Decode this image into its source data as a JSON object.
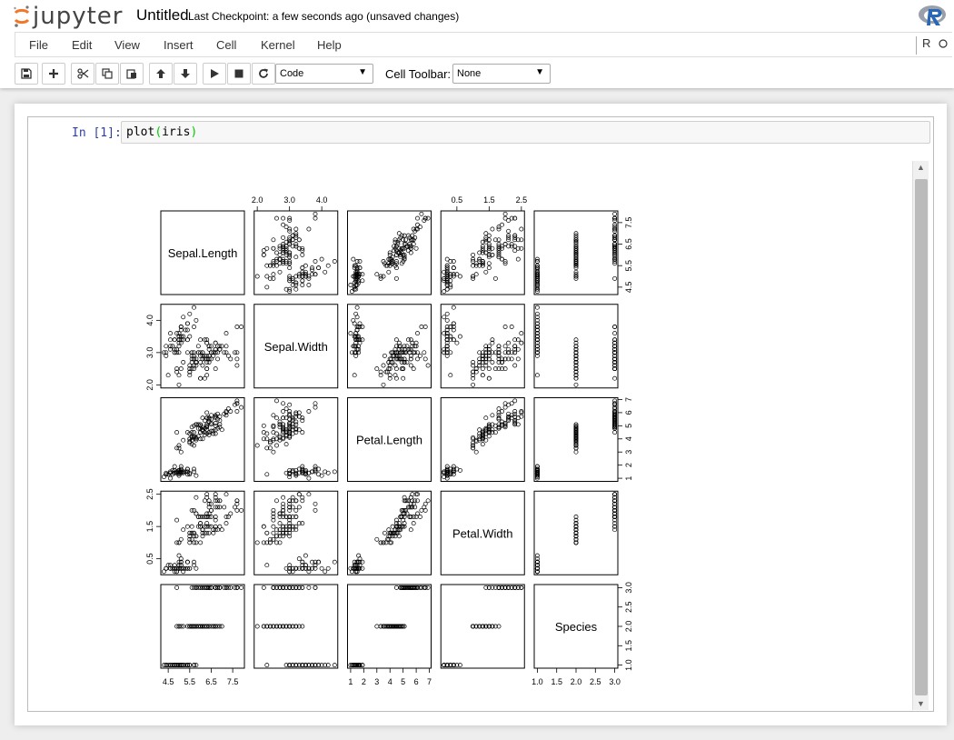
{
  "header": {
    "logo_text": "jupyter",
    "notebook_name": "Untitled",
    "checkpoint": "Last Checkpoint: a few seconds ago (unsaved changes)"
  },
  "menu": {
    "items": [
      "File",
      "Edit",
      "View",
      "Insert",
      "Cell",
      "Kernel",
      "Help"
    ],
    "kernel_indicator": "R"
  },
  "toolbar": {
    "cell_type": "Code",
    "cell_toolbar_label": "Cell Toolbar:",
    "cell_toolbar_value": "None",
    "buttons": [
      "save-icon",
      "plus-icon",
      "scissors-icon",
      "copy-icon",
      "paste-icon",
      "arrow-up-icon",
      "arrow-down-icon",
      "play-icon",
      "stop-icon",
      "restart-icon"
    ]
  },
  "cell": {
    "prompt": "In [1]:",
    "code_fn": "plot",
    "code_open": "(",
    "code_arg": "iris",
    "code_close": ")"
  },
  "chart_data": {
    "type": "scatter",
    "kind": "pairs-matrix",
    "variables": [
      "Sepal.Length",
      "Sepal.Width",
      "Petal.Length",
      "Petal.Width",
      "Species"
    ],
    "ticks": {
      "Sepal.Length": [
        "4.5",
        "5.5",
        "6.5",
        "7.5"
      ],
      "Sepal.Width": [
        "2.0",
        "3.0",
        "4.0"
      ],
      "Petal.Length": [
        "1",
        "2",
        "3",
        "4",
        "5",
        "6",
        "7"
      ],
      "Petal.Width": [
        "0.5",
        "1.5",
        "2.5"
      ],
      "Species": [
        "1.0",
        "1.5",
        "2.0",
        "2.5",
        "3.0"
      ]
    },
    "tick_values": {
      "Sepal.Length": [
        4.5,
        5.5,
        6.5,
        7.5
      ],
      "Sepal.Width": [
        2.0,
        3.0,
        4.0
      ],
      "Petal.Length": [
        1,
        2,
        3,
        4,
        5,
        6,
        7
      ],
      "Petal.Width": [
        0.5,
        1.5,
        2.5
      ],
      "Species": [
        1.0,
        1.5,
        2.0,
        2.5,
        3.0
      ]
    },
    "ranges": {
      "Sepal.Length": [
        4.3,
        7.9
      ],
      "Sepal.Width": [
        2.0,
        4.4
      ],
      "Petal.Length": [
        1.0,
        6.9
      ],
      "Petal.Width": [
        0.1,
        2.5
      ],
      "Species": [
        1,
        3
      ]
    },
    "tick_sides": {
      "top": [
        1,
        3
      ],
      "bottom": [
        0,
        2,
        4
      ],
      "left": [
        1,
        3
      ],
      "right": [
        0,
        2,
        4
      ]
    },
    "data": {
      "Sepal.Length": [
        5.1,
        4.9,
        4.7,
        4.6,
        5.0,
        5.4,
        4.6,
        5.0,
        4.4,
        4.9,
        5.4,
        4.8,
        4.8,
        4.3,
        5.8,
        5.7,
        5.4,
        5.1,
        5.7,
        5.1,
        5.4,
        5.1,
        4.6,
        5.1,
        4.8,
        5.0,
        5.0,
        5.2,
        5.2,
        4.7,
        4.8,
        5.4,
        5.2,
        5.5,
        4.9,
        5.0,
        5.5,
        4.9,
        4.4,
        5.1,
        5.0,
        4.5,
        4.4,
        5.0,
        5.1,
        4.8,
        5.1,
        4.6,
        5.3,
        5.0,
        7.0,
        6.4,
        6.9,
        5.5,
        6.5,
        5.7,
        6.3,
        4.9,
        6.6,
        5.2,
        5.0,
        5.9,
        6.0,
        6.1,
        5.6,
        6.7,
        5.6,
        5.8,
        6.2,
        5.6,
        5.9,
        6.1,
        6.3,
        6.1,
        6.4,
        6.6,
        6.8,
        6.7,
        6.0,
        5.7,
        5.5,
        5.5,
        5.8,
        6.0,
        5.4,
        6.0,
        6.7,
        6.3,
        5.6,
        5.5,
        5.5,
        6.1,
        5.8,
        5.0,
        5.6,
        5.7,
        5.7,
        6.2,
        5.1,
        5.7,
        6.3,
        5.8,
        7.1,
        6.3,
        6.5,
        7.6,
        4.9,
        7.3,
        6.7,
        7.2,
        6.5,
        6.4,
        6.8,
        5.7,
        5.8,
        6.4,
        6.5,
        7.7,
        7.7,
        6.0,
        6.9,
        5.6,
        7.7,
        6.3,
        6.7,
        7.2,
        6.2,
        6.1,
        6.4,
        7.2,
        7.4,
        7.9,
        6.4,
        6.3,
        6.1,
        7.7,
        6.3,
        6.4,
        6.0,
        6.9,
        6.7,
        6.9,
        5.8,
        6.8,
        6.7,
        6.7,
        6.3,
        6.5,
        6.2,
        5.9
      ],
      "Sepal.Width": [
        3.5,
        3.0,
        3.2,
        3.1,
        3.6,
        3.9,
        3.4,
        3.4,
        2.9,
        3.1,
        3.7,
        3.4,
        3.0,
        3.0,
        4.0,
        4.4,
        3.9,
        3.5,
        3.8,
        3.8,
        3.4,
        3.7,
        3.6,
        3.3,
        3.4,
        3.0,
        3.4,
        3.5,
        3.4,
        3.2,
        3.1,
        3.4,
        4.1,
        4.2,
        3.1,
        3.2,
        3.5,
        3.6,
        3.0,
        3.4,
        3.5,
        2.3,
        3.2,
        3.5,
        3.8,
        3.0,
        3.8,
        3.2,
        3.7,
        3.3,
        3.2,
        3.2,
        3.1,
        2.3,
        2.8,
        2.8,
        3.3,
        2.4,
        2.9,
        2.7,
        2.0,
        3.0,
        2.2,
        2.9,
        2.9,
        3.1,
        3.0,
        2.7,
        2.2,
        2.5,
        3.2,
        2.8,
        2.5,
        2.8,
        2.9,
        3.0,
        2.8,
        3.0,
        2.9,
        2.6,
        2.4,
        2.4,
        2.7,
        2.7,
        3.0,
        3.4,
        3.1,
        2.3,
        3.0,
        2.5,
        2.6,
        3.0,
        2.6,
        2.3,
        2.7,
        3.0,
        2.9,
        2.9,
        2.5,
        2.8,
        3.3,
        2.7,
        3.0,
        2.9,
        3.0,
        3.0,
        2.5,
        2.9,
        2.5,
        3.6,
        3.2,
        2.7,
        3.0,
        2.5,
        2.8,
        3.2,
        3.0,
        3.8,
        2.6,
        2.2,
        3.2,
        2.8,
        2.8,
        2.7,
        3.3,
        3.2,
        2.8,
        3.0,
        2.8,
        3.0,
        2.8,
        3.8,
        2.8,
        2.8,
        2.6,
        3.0,
        3.4,
        3.1,
        3.0,
        3.1,
        3.1,
        3.1,
        2.7,
        3.2,
        3.3,
        3.0,
        2.5,
        3.0,
        3.4,
        3.0
      ],
      "Petal.Length": [
        1.4,
        1.4,
        1.3,
        1.5,
        1.4,
        1.7,
        1.4,
        1.5,
        1.4,
        1.5,
        1.5,
        1.6,
        1.4,
        1.1,
        1.2,
        1.5,
        1.3,
        1.4,
        1.7,
        1.5,
        1.7,
        1.5,
        1.0,
        1.7,
        1.9,
        1.6,
        1.6,
        1.5,
        1.4,
        1.6,
        1.6,
        1.5,
        1.5,
        1.4,
        1.5,
        1.2,
        1.3,
        1.4,
        1.3,
        1.5,
        1.3,
        1.3,
        1.3,
        1.6,
        1.9,
        1.4,
        1.6,
        1.4,
        1.5,
        1.4,
        4.7,
        4.5,
        4.9,
        4.0,
        4.6,
        4.5,
        4.7,
        3.3,
        4.6,
        3.9,
        3.5,
        4.2,
        4.0,
        4.7,
        3.6,
        4.4,
        4.5,
        4.1,
        4.5,
        3.9,
        4.8,
        4.0,
        4.9,
        4.7,
        4.3,
        4.4,
        4.8,
        5.0,
        4.5,
        3.5,
        3.8,
        3.7,
        3.9,
        5.1,
        4.5,
        4.5,
        4.7,
        4.4,
        4.1,
        4.0,
        4.4,
        4.6,
        4.0,
        3.3,
        4.2,
        4.2,
        4.2,
        4.3,
        3.0,
        4.1,
        6.0,
        5.1,
        5.9,
        5.6,
        5.8,
        6.6,
        4.5,
        6.3,
        5.8,
        6.1,
        5.1,
        5.3,
        5.5,
        5.0,
        5.1,
        5.3,
        5.5,
        6.7,
        6.9,
        5.0,
        5.7,
        4.9,
        6.7,
        4.9,
        5.7,
        6.0,
        4.8,
        4.9,
        5.6,
        5.8,
        6.1,
        6.4,
        5.6,
        5.1,
        5.6,
        6.1,
        5.6,
        5.5,
        4.8,
        5.4,
        5.6,
        5.1,
        5.1,
        5.9,
        5.7,
        5.2,
        5.0,
        5.2,
        5.4,
        5.1
      ],
      "Petal.Width": [
        0.2,
        0.2,
        0.2,
        0.2,
        0.2,
        0.4,
        0.3,
        0.2,
        0.2,
        0.1,
        0.2,
        0.2,
        0.1,
        0.1,
        0.2,
        0.4,
        0.4,
        0.3,
        0.3,
        0.3,
        0.2,
        0.4,
        0.2,
        0.5,
        0.2,
        0.2,
        0.4,
        0.2,
        0.2,
        0.2,
        0.2,
        0.4,
        0.1,
        0.2,
        0.2,
        0.2,
        0.2,
        0.1,
        0.2,
        0.2,
        0.3,
        0.3,
        0.2,
        0.6,
        0.4,
        0.3,
        0.2,
        0.2,
        0.2,
        0.2,
        1.4,
        1.5,
        1.5,
        1.3,
        1.5,
        1.3,
        1.6,
        1.0,
        1.3,
        1.4,
        1.0,
        1.5,
        1.0,
        1.4,
        1.3,
        1.4,
        1.5,
        1.0,
        1.5,
        1.1,
        1.8,
        1.3,
        1.5,
        1.2,
        1.3,
        1.4,
        1.4,
        1.7,
        1.5,
        1.0,
        1.1,
        1.0,
        1.2,
        1.6,
        1.5,
        1.6,
        1.5,
        1.3,
        1.3,
        1.3,
        1.2,
        1.4,
        1.2,
        1.0,
        1.3,
        1.2,
        1.3,
        1.3,
        1.1,
        1.3,
        2.5,
        1.9,
        2.1,
        1.8,
        2.2,
        2.1,
        1.7,
        1.8,
        1.8,
        2.5,
        2.0,
        1.9,
        2.1,
        2.0,
        2.4,
        2.3,
        1.8,
        2.2,
        2.3,
        1.5,
        2.3,
        2.0,
        2.0,
        1.8,
        2.1,
        1.8,
        1.8,
        1.8,
        2.1,
        1.6,
        1.9,
        2.0,
        2.2,
        1.5,
        1.4,
        2.3,
        2.4,
        1.8,
        1.8,
        2.1,
        2.4,
        2.3,
        1.9,
        2.3,
        2.5,
        2.3,
        1.9,
        2.0,
        2.3,
        1.8
      ],
      "Species_counts": [
        50,
        50,
        50
      ]
    }
  }
}
